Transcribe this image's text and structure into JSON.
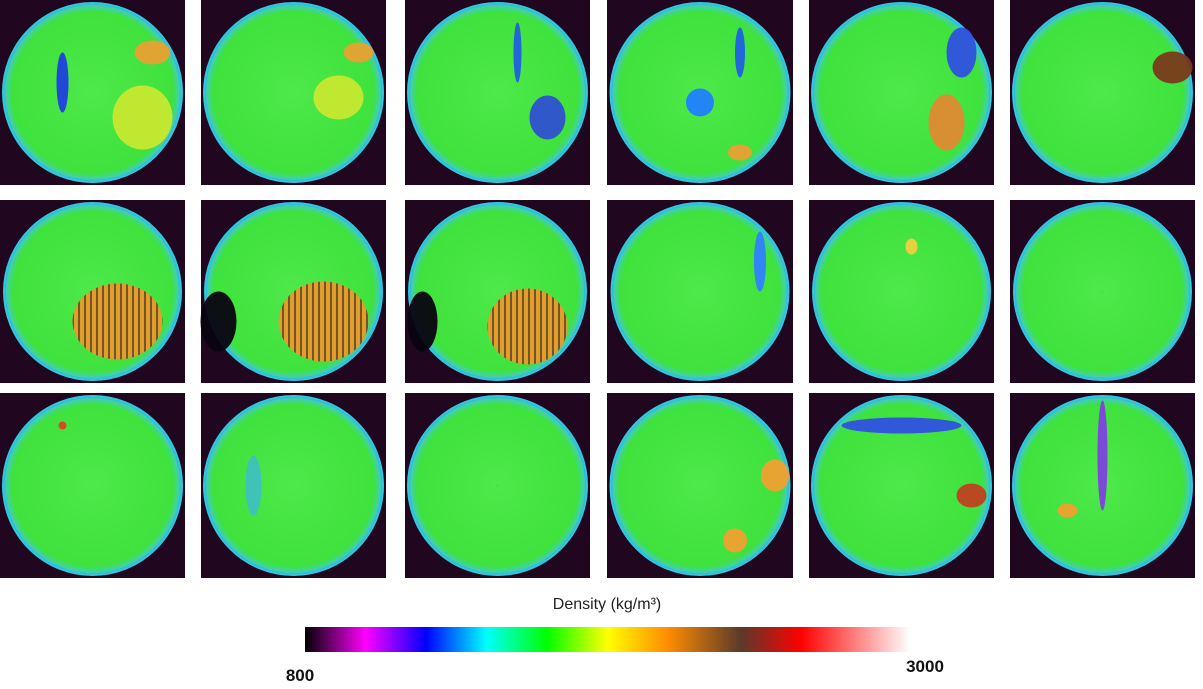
{
  "colorbar": {
    "title": "Density (kg/m³)",
    "min": "800",
    "max": "3000"
  }
}
